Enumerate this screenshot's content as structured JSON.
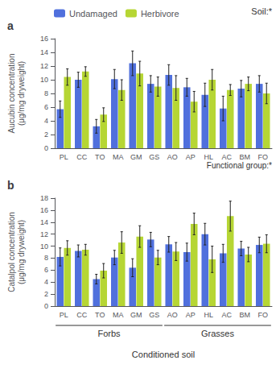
{
  "chart_data": [
    {
      "type": "bar",
      "title": "a",
      "ylabel": "Aucubin concentration\n(μg/mg dryweight)",
      "categories": [
        "PL",
        "CC",
        "TO",
        "MA",
        "GM",
        "GS",
        "AO",
        "AP",
        "HL",
        "AC",
        "BM",
        "FO"
      ],
      "series": [
        {
          "name": "Undamaged",
          "values": [
            5.7,
            10.0,
            3.2,
            10.1,
            12.4,
            9.4,
            10.7,
            8.9,
            7.8,
            5.8,
            8.7,
            9.4
          ],
          "errors": [
            1.2,
            1.1,
            1.0,
            1.4,
            1.8,
            1.2,
            1.5,
            1.3,
            1.7,
            1.8,
            1.2,
            1.2
          ]
        },
        {
          "name": "Herbivore",
          "values": [
            10.4,
            11.2,
            4.9,
            8.5,
            10.9,
            9.0,
            8.8,
            6.8,
            10.0,
            8.5,
            9.4,
            8.0
          ],
          "errors": [
            1.2,
            0.7,
            1.0,
            1.5,
            1.8,
            1.4,
            1.8,
            1.5,
            1.5,
            0.8,
            1.0,
            1.5
          ]
        }
      ],
      "ylim": [
        0,
        16
      ],
      "yticks": [
        0,
        2,
        4,
        6,
        8,
        10,
        12,
        14,
        16
      ],
      "grid": false,
      "legend": "top left",
      "annotations": [
        "Soil:*",
        "Functional group:*"
      ]
    },
    {
      "type": "bar",
      "title": "b",
      "ylabel": "Catalpol concentration\n(μg/mg dryweight)",
      "xlabel": "Conditioned soil",
      "categories": [
        "PL",
        "CC",
        "TO",
        "MA",
        "GM",
        "GS",
        "AO",
        "AP",
        "HL",
        "AC",
        "BM",
        "FO"
      ],
      "series": [
        {
          "name": "Undamaged",
          "values": [
            8.2,
            9.2,
            4.5,
            8.1,
            6.4,
            11.1,
            10.3,
            9.0,
            12.0,
            8.8,
            9.6,
            10.2
          ],
          "errors": [
            1.5,
            1.0,
            0.8,
            1.2,
            1.5,
            1.2,
            1.3,
            1.5,
            1.8,
            1.5,
            1.2,
            1.3
          ]
        },
        {
          "name": "Herbivore",
          "values": [
            9.7,
            9.4,
            5.9,
            10.6,
            11.6,
            8.1,
            9.1,
            13.7,
            7.8,
            15.0,
            8.6,
            10.4
          ],
          "errors": [
            1.2,
            0.9,
            1.2,
            1.8,
            1.8,
            1.2,
            1.5,
            1.8,
            2.2,
            2.5,
            1.2,
            1.5
          ]
        }
      ],
      "ylim": [
        0,
        18
      ],
      "yticks": [
        0,
        2,
        4,
        6,
        8,
        10,
        12,
        14,
        16,
        18
      ],
      "grid": false,
      "groups": [
        {
          "label": "Forbs",
          "categories": [
            "PL",
            "CC",
            "TO",
            "MA",
            "GM",
            "GS"
          ]
        },
        {
          "label": "Grasses",
          "categories": [
            "AO",
            "AP",
            "HL",
            "AC",
            "BM",
            "FO"
          ]
        }
      ]
    }
  ]
}
